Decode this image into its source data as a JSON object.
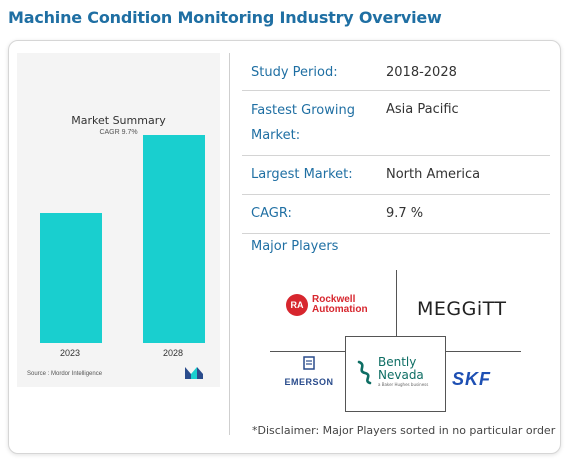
{
  "page": {
    "title": "Machine Condition Monitoring Industry Overview"
  },
  "chart": {
    "title": "Market Summary",
    "subtitle": "CAGR 9.7%",
    "source": "Source : Mordor Intelligence",
    "bar_color": "#19cfcf"
  },
  "chart_data": {
    "type": "bar",
    "title": "Market Summary",
    "subtitle": "CAGR 9.7%",
    "categories": [
      "2023",
      "2028"
    ],
    "values": [
      1.0,
      1.6
    ],
    "ylim": [
      0,
      2.0
    ],
    "grid": false,
    "xlabel": "",
    "ylabel": ""
  },
  "info": {
    "rows": [
      {
        "label": "Study Period:",
        "value": "2018-2028"
      },
      {
        "label": "Fastest Growing",
        "label2": "Market:",
        "value": "Asia Pacific"
      },
      {
        "label": "Largest Market:",
        "value": "North America"
      },
      {
        "label": "CAGR:",
        "value": "9.7 %"
      }
    ],
    "players_title": "Major Players"
  },
  "players": {
    "rockwell": {
      "badge": "RA",
      "line1": "Rockwell",
      "line2": "Automation",
      "icon": "rockwell-logo-icon"
    },
    "meggitt": {
      "name": "MEGGiTT"
    },
    "emerson": {
      "name": "EMERSON",
      "icon": "emerson-logo-icon"
    },
    "bently": {
      "line1": "Bently",
      "line2": "Nevada",
      "tagline": "a Baker Hughes business",
      "icon": "bently-logo-icon"
    },
    "skf": {
      "name": "SKF"
    }
  },
  "disclaimer": "*Disclaimer: Major Players sorted in no particular order"
}
